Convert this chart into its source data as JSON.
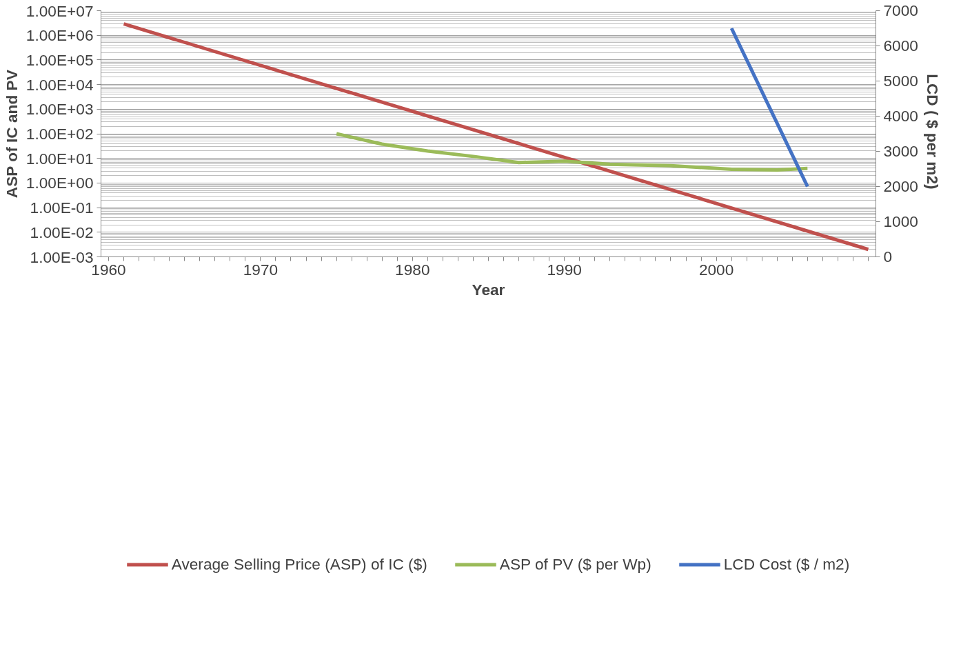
{
  "chart_data": {
    "type": "line",
    "xlabel": "Year",
    "ylabel": "ASP of IC and PV",
    "y2label": "LCD  ( $ per m2)",
    "xlim": [
      1959.5,
      2010.5
    ],
    "xticks": [
      1960,
      {
        "value": 1961,
        "label": null
      },
      {
        "value": 1962,
        "label": null
      },
      {
        "value": 1963,
        "label": null
      },
      {
        "value": 1964,
        "label": null
      },
      {
        "value": 1965,
        "label": null
      },
      {
        "value": 1966,
        "label": null
      },
      {
        "value": 1967,
        "label": null
      },
      {
        "value": 1968,
        "label": null
      },
      {
        "value": 1969,
        "label": null
      },
      1970,
      {
        "value": 1971,
        "label": null
      },
      {
        "value": 1972,
        "label": null
      },
      {
        "value": 1973,
        "label": null
      },
      {
        "value": 1974,
        "label": null
      },
      {
        "value": 1975,
        "label": null
      },
      {
        "value": 1976,
        "label": null
      },
      {
        "value": 1977,
        "label": null
      },
      {
        "value": 1978,
        "label": null
      },
      {
        "value": 1979,
        "label": null
      },
      1980,
      {
        "value": 1981,
        "label": null
      },
      {
        "value": 1982,
        "label": null
      },
      {
        "value": 1983,
        "label": null
      },
      {
        "value": 1984,
        "label": null
      },
      {
        "value": 1985,
        "label": null
      },
      {
        "value": 1986,
        "label": null
      },
      {
        "value": 1987,
        "label": null
      },
      {
        "value": 1988,
        "label": null
      },
      {
        "value": 1989,
        "label": null
      },
      1990,
      {
        "value": 1991,
        "label": null
      },
      {
        "value": 1992,
        "label": null
      },
      {
        "value": 1993,
        "label": null
      },
      {
        "value": 1994,
        "label": null
      },
      {
        "value": 1995,
        "label": null
      },
      {
        "value": 1996,
        "label": null
      },
      {
        "value": 1997,
        "label": null
      },
      {
        "value": 1998,
        "label": null
      },
      {
        "value": 1999,
        "label": null
      },
      2000,
      {
        "value": 2001,
        "label": null
      },
      {
        "value": 2002,
        "label": null
      },
      {
        "value": 2003,
        "label": null
      },
      {
        "value": 2004,
        "label": null
      },
      {
        "value": 2005,
        "label": null
      },
      {
        "value": 2006,
        "label": null
      },
      {
        "value": 2007,
        "label": null
      },
      {
        "value": 2008,
        "label": null
      },
      {
        "value": 2009,
        "label": null
      },
      {
        "value": 2010,
        "label": null
      }
    ],
    "ylim": [
      0.001,
      10000000
    ],
    "log": true,
    "yticks": [
      {
        "value": 0.001,
        "label": "1.00E-03"
      },
      {
        "value": 0.01,
        "label": "1.00E-02"
      },
      {
        "value": 0.1,
        "label": "1.00E-01"
      },
      {
        "value": 1,
        "label": "1.00E+00"
      },
      {
        "value": 10,
        "label": "1.00E+01"
      },
      {
        "value": 100,
        "label": "1.00E+02"
      },
      {
        "value": 1000,
        "label": "1.00E+03"
      },
      {
        "value": 10000,
        "label": "1.00E+04"
      },
      {
        "value": 100000,
        "label": "1.00E+05"
      },
      {
        "value": 1000000,
        "label": "1.00E+06"
      },
      {
        "value": 10000000,
        "label": "1.00E+07"
      }
    ],
    "y2lim": [
      0,
      7000
    ],
    "y2ticks": [
      0,
      1000,
      2000,
      3000,
      4000,
      5000,
      6000,
      7000
    ],
    "grid": "y",
    "legend": "bottom",
    "series": [
      {
        "name": "Average Selling Price (ASP) of IC ($)",
        "color": "#c0504d",
        "x": [
          1961,
          2010
        ],
        "values": [
          2900000,
          0.002
        ]
      },
      {
        "name": "ASP of PV ($ per Wp)",
        "color": "#9bbb59",
        "x": [
          1975,
          1978,
          1981,
          1984,
          1987,
          1990,
          1993,
          1997,
          2001,
          2004,
          2006
        ],
        "values": [
          100,
          38,
          20,
          12,
          6.8,
          7.7,
          5.8,
          5.1,
          3.6,
          3.4,
          3.9
        ]
      },
      {
        "name": "LCD Cost ($ / m2)",
        "color": "#4472c4",
        "axis": "y2",
        "x": [
          2001,
          2006
        ],
        "values": [
          6500,
          2000
        ]
      }
    ]
  }
}
